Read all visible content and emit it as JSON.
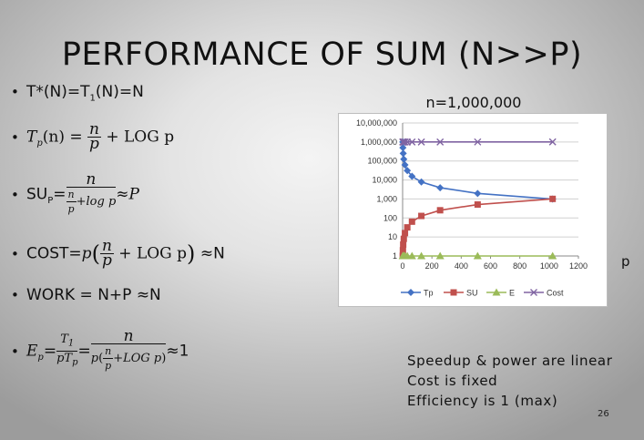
{
  "title": "PERFORMANCE OF SUM (N>>P)",
  "bullets": {
    "b1": "T*(N)=T",
    "b1_sub": "1",
    "b1_end": "(N)=N",
    "b2_lhs": "T",
    "b2_sub": "p",
    "b2_arg": "(n) = ",
    "b2_num": "n",
    "b2_den": "p",
    "b2_rest": " + LOG p",
    "b3_lhs": "SU",
    "b3_sub": "P",
    "b3_eq": "=",
    "b3_num": "n",
    "b3_den_num": "n",
    "b3_den_den": "p",
    "b3_den_rest": "+log p",
    "b3_rest": "≈P",
    "b4_lhs": "COST=",
    "b4_p": "p",
    "b4_num": "n",
    "b4_den": "p",
    "b4_mid": " + LOG p",
    "b4_rest": " ≈N",
    "b5": "WORK = N+P ≈N",
    "b6_lhs": "E",
    "b6_sub": "p",
    "b6_eq1": "=",
    "b6_f1_num": "T",
    "b6_f1_num_sub": "1",
    "b6_f1_den": "pT",
    "b6_f1_den_sub": "p",
    "b6_eq2": "=",
    "b6_f2_num": "n",
    "b6_f2_den_p": "p",
    "b6_f2_den_n": "n",
    "b6_f2_den_d": "p",
    "b6_f2_den_rest": "+LOG p",
    "b6_rest": "≈1"
  },
  "chart_title_text": "n=1,000,000",
  "x_axis_name": "p",
  "notes": [
    "Speedup & power are linear",
    "Cost is fixed",
    "Efficiency is 1 (max)"
  ],
  "page_number": "26",
  "chart_data": {
    "type": "line",
    "x_scale": "linear",
    "y_scale": "log",
    "xlim": [
      0,
      1200
    ],
    "ylim": [
      1,
      10000000
    ],
    "x_ticks": [
      "0",
      "200",
      "400",
      "600",
      "800",
      "1000",
      "1200"
    ],
    "y_ticks": [
      "1",
      "10",
      "100",
      "1,000",
      "10,000",
      "100,000",
      "1,000,000",
      "10,000,000"
    ],
    "y_tick_values": [
      1,
      10,
      100,
      1000,
      10000,
      100000,
      1000000,
      10000000
    ],
    "x_tick_values": [
      0,
      200,
      400,
      600,
      800,
      1000,
      1200
    ],
    "x": [
      1,
      2,
      4,
      8,
      16,
      32,
      64,
      128,
      256,
      512,
      1024
    ],
    "series": [
      {
        "name": "Tp",
        "color": "#4472c4",
        "marker": "diamond",
        "values": [
          1000000,
          500001,
          250002,
          125003,
          62504,
          31255,
          15631,
          7820,
          3914,
          1962,
          987
        ]
      },
      {
        "name": "SU",
        "color": "#c0504d",
        "marker": "square",
        "values": [
          1,
          2,
          4,
          8,
          16,
          32,
          64,
          128,
          255,
          510,
          1013
        ]
      },
      {
        "name": "E",
        "color": "#9bbb59",
        "marker": "triangle",
        "values": [
          1,
          1,
          1,
          1,
          1,
          1,
          1,
          1,
          1,
          1,
          1
        ]
      },
      {
        "name": "Cost",
        "color": "#8064a2",
        "marker": "x",
        "values": [
          1000000,
          1000002,
          1000008,
          1000024,
          1000064,
          1000160,
          1000384,
          1000896,
          1002048,
          1004608,
          1010240
        ]
      }
    ],
    "legend_position": "bottom",
    "grid": "horizontal"
  }
}
